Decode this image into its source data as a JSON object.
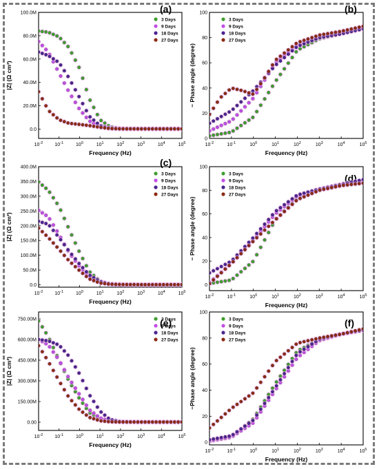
{
  "series_colors": {
    "3 Days": "#3f9e2e",
    "9 Days": "#c24de8",
    "18 Days": "#4b2490",
    "27 Days": "#8c2a14"
  },
  "halo_color": "#f2b8f2",
  "chart_data": [
    {
      "panel": "(a)",
      "type": "scatter",
      "x_scale": "log",
      "xlabel": "Frequency (Hz)",
      "ylabel": "|Z| (Ω cm²)",
      "xlim": [
        0.01,
        100000
      ],
      "ylim": [
        -8,
        100
      ],
      "yticks": [
        0,
        20,
        40,
        60,
        80,
        100
      ],
      "ytick_labels": [
        "0.0",
        "20.0M",
        "40.0M",
        "60.0M",
        "80.0M",
        "100.0M"
      ],
      "xticks": [
        0.01,
        0.1,
        1,
        10,
        100,
        1000,
        10000,
        100000
      ],
      "xtick_labels": [
        "10-2",
        "10-1",
        "100",
        "101",
        "102",
        "103",
        "104",
        "105"
      ],
      "legend": [
        "3 Days",
        "9 Days",
        "18 Days",
        "27 Days"
      ],
      "series": [
        {
          "name": "3 Days",
          "x": [
            0.01,
            0.03,
            0.1,
            0.3,
            1,
            3,
            10,
            30,
            100,
            1000,
            100000
          ],
          "y": [
            84,
            83,
            79,
            70,
            52,
            26,
            8,
            2,
            0.5,
            0.2,
            0.2
          ]
        },
        {
          "name": "9 Days",
          "x": [
            0.01,
            0.03,
            0.1,
            0.3,
            1,
            3,
            10,
            30,
            100,
            1000,
            100000
          ],
          "y": [
            75,
            66,
            48,
            32,
            17,
            7,
            2,
            0.5,
            0.2,
            0.2,
            0.2
          ]
        },
        {
          "name": "18 Days",
          "x": [
            0.01,
            0.03,
            0.1,
            0.3,
            1,
            3,
            10,
            30,
            100,
            1000,
            100000
          ],
          "y": [
            66,
            63,
            57,
            44,
            27,
            11,
            3,
            0.8,
            0.3,
            0.2,
            0.2
          ]
        },
        {
          "name": "27 Days",
          "x": [
            0.01,
            0.03,
            0.1,
            0.3,
            1,
            3,
            10,
            30,
            100,
            1000,
            100000
          ],
          "y": [
            32,
            16,
            8,
            5,
            4,
            3,
            1.5,
            0.5,
            0.2,
            0.2,
            0.2
          ]
        }
      ]
    },
    {
      "panel": "(b)",
      "type": "scatter",
      "x_scale": "log",
      "xlabel": "Frequency (Hz)",
      "ylabel": "− Phase angle (degree)",
      "xlim": [
        0.01,
        100000
      ],
      "ylim": [
        0,
        100
      ],
      "yticks": [
        0,
        20,
        40,
        60,
        80,
        100
      ],
      "ytick_labels": [
        "0",
        "20",
        "40",
        "60",
        "80",
        "100"
      ],
      "xticks": [
        0.01,
        0.1,
        1,
        10,
        100,
        1000,
        10000,
        100000
      ],
      "xtick_labels": [
        "10-2",
        "10-1",
        "100",
        "101",
        "102",
        "103",
        "104",
        "105"
      ],
      "legend": [
        "3 Days",
        "9 Days",
        "18 Days",
        "27 Days"
      ],
      "series": [
        {
          "name": "3 Days",
          "x": [
            0.01,
            0.1,
            1,
            10,
            100,
            1000,
            10000,
            100000
          ],
          "y": [
            2,
            5,
            17,
            45,
            70,
            79,
            83,
            87
          ]
        },
        {
          "name": "9 Days",
          "x": [
            0.01,
            0.1,
            1,
            10,
            100,
            1000,
            10000,
            100000
          ],
          "y": [
            6,
            14,
            32,
            60,
            74,
            80,
            84,
            88
          ]
        },
        {
          "name": "18 Days",
          "x": [
            0.01,
            0.1,
            1,
            10,
            100,
            1000,
            10000,
            100000
          ],
          "y": [
            12,
            22,
            38,
            58,
            73,
            80,
            83,
            87
          ]
        },
        {
          "name": "27 Days",
          "x": [
            0.01,
            0.03,
            0.1,
            0.3,
            1,
            3,
            10,
            100,
            1000,
            10000,
            100000
          ],
          "y": [
            19,
            32,
            40,
            38,
            35,
            47,
            62,
            76,
            82,
            85,
            89
          ]
        }
      ]
    },
    {
      "panel": "(c)",
      "type": "scatter",
      "x_scale": "log",
      "xlabel": "Frequency (Hz)",
      "ylabel": "|Z| (Ω cm²)",
      "xlim": [
        0.01,
        100000
      ],
      "ylim": [
        -8,
        400
      ],
      "yticks": [
        0,
        50,
        100,
        150,
        200,
        250,
        300,
        350,
        400
      ],
      "ytick_labels": [
        "0.0",
        "50.0M",
        "100.0M",
        "150.0M",
        "200.0M",
        "250.0M",
        "300.0M",
        "350.0M",
        "400.0M"
      ],
      "xticks": [
        0.01,
        0.1,
        1,
        10,
        100,
        1000,
        10000,
        100000
      ],
      "xtick_labels": [
        "10-2",
        "10-1",
        "100",
        "101",
        "102",
        "103",
        "104",
        "105"
      ],
      "legend": [
        "3 Days",
        "9 Days",
        "18 Days",
        "27 Days"
      ],
      "series": [
        {
          "name": "3 Days",
          "x": [
            0.01,
            0.03,
            0.1,
            0.3,
            1,
            3,
            10,
            30,
            100,
            1000,
            100000
          ],
          "y": [
            348,
            320,
            265,
            190,
            110,
            45,
            12,
            3,
            1,
            0.5,
            0.5
          ]
        },
        {
          "name": "9 Days",
          "x": [
            0.01,
            0.03,
            0.1,
            0.3,
            1,
            3,
            10,
            30,
            100,
            1000,
            100000
          ],
          "y": [
            252,
            230,
            170,
            110,
            62,
            28,
            8,
            2,
            1,
            0.5,
            0.5
          ]
        },
        {
          "name": "18 Days",
          "x": [
            0.01,
            0.03,
            0.1,
            0.3,
            1,
            3,
            10,
            30,
            100,
            1000,
            100000
          ],
          "y": [
            215,
            205,
            160,
            115,
            70,
            33,
            11,
            3,
            1,
            0.5,
            0.5
          ]
        },
        {
          "name": "27 Days",
          "x": [
            0.01,
            0.03,
            0.1,
            0.3,
            1,
            3,
            10,
            30,
            100,
            1000,
            100000
          ],
          "y": [
            192,
            160,
            120,
            82,
            48,
            20,
            6,
            2,
            1,
            0.5,
            0.5
          ]
        }
      ]
    },
    {
      "panel": "(d)",
      "type": "scatter",
      "x_scale": "log",
      "xlabel": "Frequency (Hz)",
      "ylabel": "− Phase angle (degree)",
      "xlim": [
        0.01,
        100000
      ],
      "ylim": [
        -5,
        100
      ],
      "yticks": [
        0,
        20,
        40,
        60,
        80,
        100
      ],
      "ytick_labels": [
        "0",
        "20",
        "40",
        "60",
        "80",
        "100"
      ],
      "xticks": [
        0.01,
        0.1,
        1,
        10,
        100,
        1000,
        10000,
        100000
      ],
      "xtick_labels": [
        "10-2",
        "10-1",
        "100",
        "101",
        "102",
        "103",
        "104",
        "105"
      ],
      "legend": [
        "3 Days",
        "9 Days",
        "18 Days",
        "27 Days"
      ],
      "series": [
        {
          "name": "3 Days",
          "x": [
            0.01,
            0.1,
            1,
            10,
            100,
            1000,
            10000,
            100000
          ],
          "y": [
            1,
            4,
            20,
            55,
            73,
            80,
            84,
            87
          ]
        },
        {
          "name": "9 Days",
          "x": [
            0.01,
            0.1,
            1,
            10,
            100,
            1000,
            10000,
            100000
          ],
          "y": [
            2,
            18,
            38,
            60,
            75,
            81,
            85,
            88
          ]
        },
        {
          "name": "18 Days",
          "x": [
            0.01,
            0.1,
            1,
            10,
            100,
            1000,
            10000,
            100000
          ],
          "y": [
            10,
            20,
            40,
            62,
            76,
            81,
            85,
            89
          ]
        },
        {
          "name": "27 Days",
          "x": [
            0.01,
            0.1,
            1,
            10,
            100,
            1000,
            10000,
            100000
          ],
          "y": [
            1,
            18,
            37,
            55,
            72,
            80,
            84,
            86
          ]
        }
      ]
    },
    {
      "panel": "(e)",
      "type": "scatter",
      "x_scale": "log",
      "xlabel": "Frequency (Hz)",
      "ylabel": "|Z| (Ω cm²)",
      "xlim": [
        0.01,
        100000
      ],
      "ylim": [
        -60,
        800
      ],
      "yticks": [
        0,
        150,
        300,
        450,
        600,
        750
      ],
      "ytick_labels": [
        "0.00",
        "150.00M",
        "300.00M",
        "450.00M",
        "600.00M",
        "750.00M"
      ],
      "xticks": [
        0.01,
        0.1,
        1,
        10,
        100,
        1000,
        10000,
        100000
      ],
      "xtick_labels": [
        "10-2",
        "10-1",
        "100",
        "101",
        "102",
        "103",
        "104",
        "105"
      ],
      "legend": [
        "3 Days",
        "9 Days",
        "18 Days",
        "27 Days"
      ],
      "series": [
        {
          "name": "3 Days",
          "x": [
            0.01,
            0.03,
            0.1,
            0.3,
            1,
            3,
            10,
            30,
            100,
            1000,
            100000
          ],
          "y": [
            735,
            620,
            450,
            300,
            170,
            70,
            22,
            5,
            2,
            1,
            1
          ]
        },
        {
          "name": "9 Days",
          "x": [
            0.01,
            0.03,
            0.1,
            0.3,
            1,
            3,
            10,
            30,
            100,
            1000,
            100000
          ],
          "y": [
            600,
            560,
            450,
            320,
            200,
            90,
            30,
            8,
            2,
            1,
            1
          ]
        },
        {
          "name": "18 Days",
          "x": [
            0.01,
            0.03,
            0.1,
            0.3,
            1,
            3,
            10,
            30,
            100,
            1000,
            100000
          ],
          "y": [
            600,
            590,
            560,
            480,
            350,
            200,
            80,
            20,
            4,
            1,
            1
          ]
        },
        {
          "name": "27 Days",
          "x": [
            0.01,
            0.03,
            0.1,
            0.3,
            1,
            3,
            10,
            30,
            100,
            1000,
            100000
          ],
          "y": [
            555,
            440,
            300,
            180,
            90,
            35,
            10,
            3,
            1,
            1,
            1
          ]
        }
      ]
    },
    {
      "panel": "(f)",
      "type": "scatter",
      "x_scale": "log",
      "xlabel": "Frequency (Hz)",
      "ylabel": "−Phase angle (degree)",
      "xlim": [
        0.01,
        100000
      ],
      "ylim": [
        -2,
        100
      ],
      "yticks": [
        0,
        20,
        40,
        60,
        80,
        100
      ],
      "ytick_labels": [
        "0",
        "20",
        "40",
        "60",
        "80",
        "100"
      ],
      "xticks": [
        0.01,
        0.1,
        1,
        10,
        100,
        1000,
        10000,
        100000
      ],
      "xtick_labels": [
        "10-2",
        "10-1",
        "100",
        "101",
        "102",
        "103",
        "104",
        "105"
      ],
      "legend": [
        "3 Days",
        "9 Days",
        "18 Days",
        "27 Days"
      ],
      "series": [
        {
          "name": "3 Days",
          "x": [
            0.01,
            0.1,
            1,
            10,
            100,
            1000,
            10000,
            100000
          ],
          "y": [
            1,
            4,
            18,
            45,
            70,
            79,
            83,
            86
          ]
        },
        {
          "name": "9 Days",
          "x": [
            0.01,
            0.1,
            1,
            10,
            100,
            1000,
            10000,
            100000
          ],
          "y": [
            1,
            4,
            15,
            40,
            65,
            78,
            83,
            86
          ]
        },
        {
          "name": "18 Days",
          "x": [
            0.01,
            0.1,
            1,
            10,
            100,
            1000,
            10000,
            100000
          ],
          "y": [
            2,
            5,
            17,
            42,
            68,
            79,
            83,
            86
          ]
        },
        {
          "name": "27 Days",
          "x": [
            0.01,
            0.1,
            1,
            10,
            100,
            1000,
            10000,
            100000
          ],
          "y": [
            11,
            26,
            38,
            62,
            76,
            80,
            83,
            87
          ]
        }
      ]
    }
  ]
}
